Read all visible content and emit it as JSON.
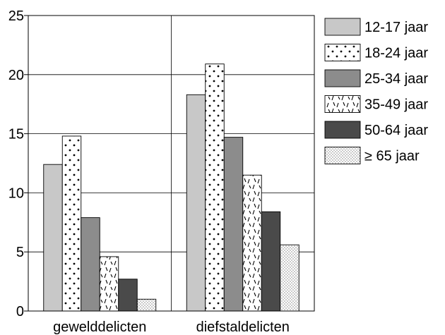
{
  "chart_data": {
    "type": "bar",
    "categories": [
      "gewelddelicten",
      "diefstaldelicten"
    ],
    "series": [
      {
        "name": "12-17 jaar",
        "values": [
          12.4,
          18.3
        ],
        "fill": "#c8c8c8",
        "pattern": "solid"
      },
      {
        "name": "18-24 jaar",
        "values": [
          14.8,
          20.9
        ],
        "fill": "#ffffff",
        "pattern": "dots"
      },
      {
        "name": "25-34 jaar",
        "values": [
          7.9,
          14.7
        ],
        "fill": "#8c8c8c",
        "pattern": "solid"
      },
      {
        "name": "35-49 jaar",
        "values": [
          4.6,
          11.5
        ],
        "fill": "#ffffff",
        "pattern": "dashes"
      },
      {
        "name": "50-64 jaar",
        "values": [
          2.7,
          8.4
        ],
        "fill": "#4a4a4a",
        "pattern": "solid"
      },
      {
        "name": "≥ 65 jaar",
        "values": [
          1.0,
          5.6
        ],
        "fill": "#ffffff",
        "pattern": "fine-dots"
      }
    ],
    "ylim": [
      0,
      25
    ],
    "yticks": [
      0,
      5,
      10,
      15,
      20,
      25
    ],
    "ytick_labels": [
      "0",
      "5",
      "10",
      "15",
      "20",
      "25"
    ],
    "title": "",
    "xlabel": "",
    "ylabel": "",
    "grid": true,
    "legend_position": "right"
  }
}
